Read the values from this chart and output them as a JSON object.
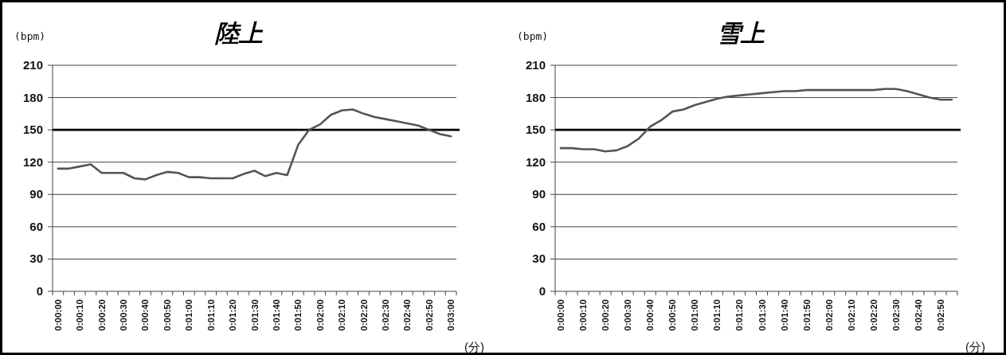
{
  "chart_data": [
    {
      "type": "line",
      "title": "陸上",
      "ylabel": "(bpm)",
      "xlabel": "(分)",
      "color": "#555555",
      "ylim": [
        0,
        210
      ],
      "yticks": [
        0,
        30,
        60,
        90,
        120,
        150,
        180,
        210
      ],
      "grid": "y",
      "ref_lines": [
        {
          "axis": "y",
          "value": 150,
          "color": "#000000"
        }
      ],
      "categories": [
        "0:00:00",
        null,
        "0:00:10",
        null,
        "0:00:20",
        null,
        "0:00:30",
        null,
        "0:00:40",
        null,
        "0:00:50",
        null,
        "0:01:00",
        null,
        "0:01:10",
        null,
        "0:01:20",
        null,
        "0:01:30",
        null,
        "0:01:40",
        null,
        "0:01:50",
        null,
        "0:02:00",
        null,
        "0:02:10",
        null,
        "0:02:20",
        null,
        "0:02:30",
        null,
        "0:02:40",
        null,
        "0:02:50",
        null,
        "0:03:00"
      ],
      "values": [
        114,
        114,
        116,
        118,
        110,
        110,
        110,
        105,
        104,
        108,
        111,
        110,
        106,
        106,
        105,
        105,
        105,
        109,
        112,
        107,
        110,
        108,
        136,
        150,
        155,
        164,
        168,
        169,
        165,
        162,
        160,
        158,
        156,
        154,
        150,
        146,
        144
      ]
    },
    {
      "type": "line",
      "title": "雪上",
      "ylabel": "(bpm)",
      "xlabel": "(分)",
      "color": "#555555",
      "ylim": [
        0,
        210
      ],
      "yticks": [
        0,
        30,
        60,
        90,
        120,
        150,
        180,
        210
      ],
      "grid": "y",
      "ref_lines": [
        {
          "axis": "y",
          "value": 150,
          "color": "#000000"
        }
      ],
      "categories": [
        "0:00:00",
        null,
        "0:00:10",
        null,
        "0:00:20",
        null,
        "0:00:30",
        null,
        "0:00:40",
        null,
        "0:00:50",
        null,
        "0:01:00",
        null,
        "0:01:10",
        null,
        "0:01:20",
        null,
        "0:01:30",
        null,
        "0:01:40",
        null,
        "0:01:50",
        null,
        "0:02:00",
        null,
        "0:02:10",
        null,
        "0:02:20",
        null,
        "0:02:30",
        null,
        "0:02:40",
        null,
        "0:02:50",
        null
      ],
      "values": [
        133,
        133,
        132,
        132,
        130,
        131,
        135,
        142,
        153,
        159,
        167,
        169,
        173,
        176,
        179,
        181,
        182,
        183,
        184,
        185,
        186,
        186,
        187,
        187,
        187,
        187,
        187,
        187,
        187,
        188,
        188,
        186,
        183,
        180,
        178,
        178
      ]
    }
  ]
}
